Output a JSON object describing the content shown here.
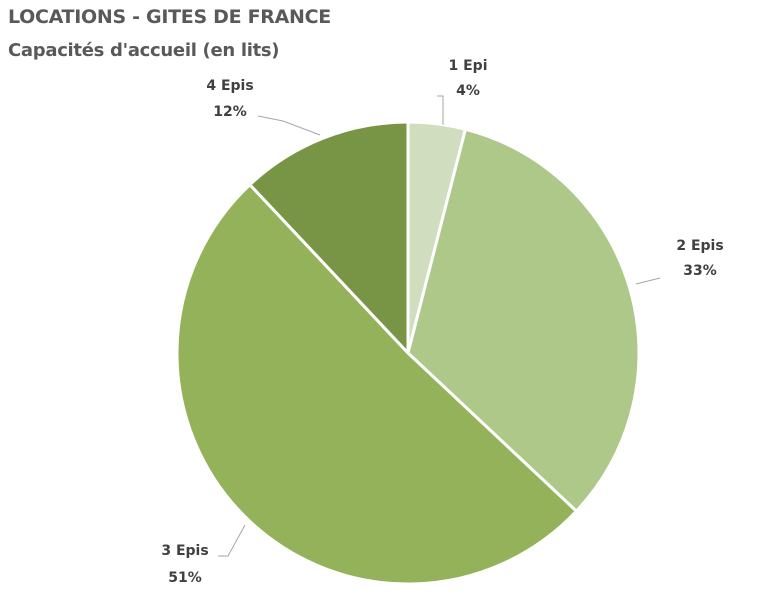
{
  "chart_data": {
    "type": "pie",
    "title": "LOCATIONS - GITES DE FRANCE",
    "subtitle": "Capacités d'accueil (en lits)",
    "categories": [
      "1 Epi",
      "2 Epis",
      "3 Epis",
      "4 Epis"
    ],
    "values": [
      4,
      33,
      51,
      12
    ],
    "value_labels": [
      "4%",
      "33%",
      "51%",
      "12%"
    ],
    "colors": [
      "#d0ddbf",
      "#aec88a",
      "#93b25a",
      "#789445"
    ],
    "start_angle": "12 o'clock, clockwise"
  }
}
